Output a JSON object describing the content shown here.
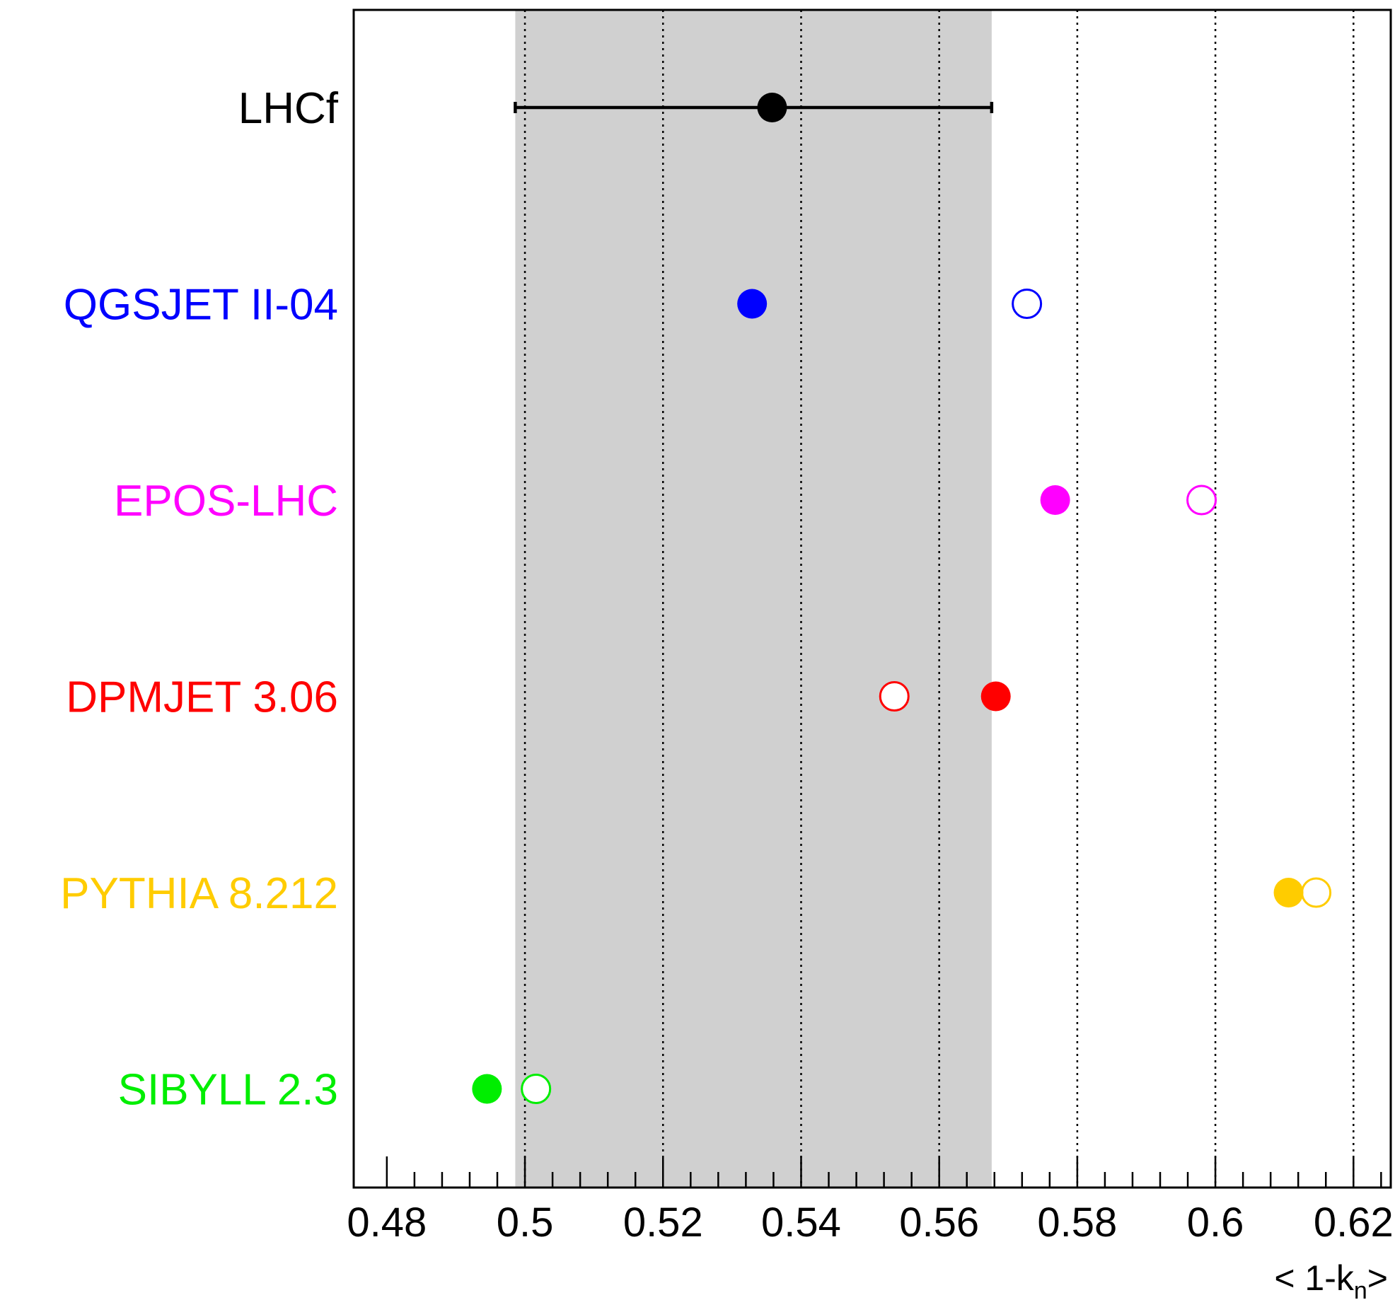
{
  "chart_data": {
    "type": "scatter",
    "xlabel_main": "< 1-k",
    "xlabel_sub": "n",
    "xlabel_end": ">",
    "xlim": [
      0.4752,
      0.6254
    ],
    "tick_labels": [
      "0.48",
      "0.5",
      "0.52",
      "0.54",
      "0.56",
      "0.58",
      "0.6",
      "0.62"
    ],
    "tick_values": [
      0.48,
      0.5,
      0.52,
      0.54,
      0.56,
      0.58,
      0.6,
      0.62
    ],
    "grid": "vertical dotted at major ticks",
    "band": {
      "from": 0.4986,
      "to": 0.5676,
      "color": "#d0d0d0"
    },
    "rows": [
      {
        "label": "LHCf",
        "color": "#000000",
        "filled": 0.5358,
        "err_low": 0.4986,
        "err_high": 0.5676
      },
      {
        "label": "QGSJET II-04",
        "color": "#0000ff",
        "filled": 0.5329,
        "open": 0.5727
      },
      {
        "label": "EPOS-LHC",
        "color": "#ff00ff",
        "filled": 0.5768,
        "open": 0.598
      },
      {
        "label": "DPMJET 3.06",
        "color": "#ff0000",
        "filled": 0.5682,
        "open": 0.5535
      },
      {
        "label": "PYTHIA 8.212",
        "color": "#ffcc00",
        "filled": 0.6106,
        "open": 0.6146
      },
      {
        "label": "SIBYLL 2.3",
        "color": "#00ee00",
        "filled": 0.4945,
        "open": 0.5016
      }
    ]
  }
}
